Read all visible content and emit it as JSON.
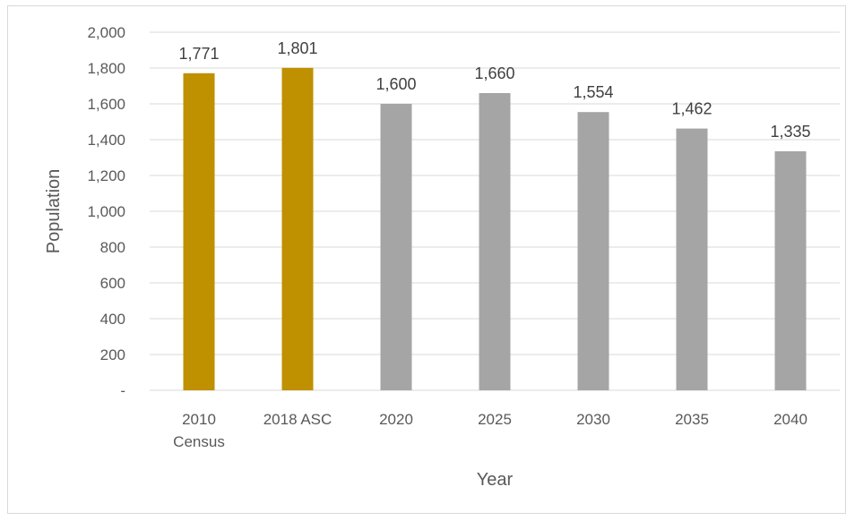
{
  "chart_data": {
    "type": "bar",
    "categories": [
      [
        "2010",
        "Census"
      ],
      [
        "2018 ASC"
      ],
      [
        "2020"
      ],
      [
        "2025"
      ],
      [
        "2030"
      ],
      [
        "2035"
      ],
      [
        "2040"
      ]
    ],
    "values": [
      1771,
      1801,
      1600,
      1660,
      1554,
      1462,
      1335
    ],
    "data_labels": [
      "1,771",
      "1,801",
      "1,600",
      "1,660",
      "1,554",
      "1,462",
      "1,335"
    ],
    "bar_colors": [
      "#bf9000",
      "#bf9000",
      "#a5a5a5",
      "#a5a5a5",
      "#a5a5a5",
      "#a5a5a5",
      "#a5a5a5"
    ],
    "gridline_color": "#d9d9d9",
    "xlabel": "Year",
    "ylabel": "Population",
    "ylim": [
      0,
      2000
    ],
    "yticks": [
      0,
      200,
      400,
      600,
      800,
      1000,
      1200,
      1400,
      1600,
      1800,
      2000
    ],
    "ytick_labels": [
      "-",
      "200",
      "400",
      "600",
      "800",
      "1,000",
      "1,200",
      "1,400",
      "1,600",
      "1,800",
      "2,000"
    ],
    "grid": true,
    "legend": "none"
  }
}
